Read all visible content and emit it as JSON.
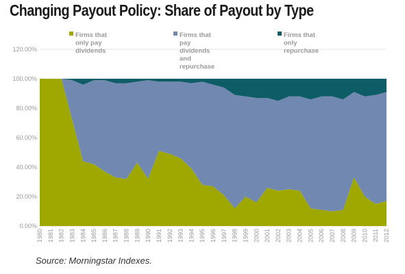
{
  "page": {
    "title": "Changing Payout Policy: Share of Payout by Type",
    "source": "Source: Morningstar Indexes."
  },
  "chart_data": {
    "type": "area",
    "stacked": true,
    "x": [
      "1980",
      "1981",
      "1982",
      "1983",
      "1984",
      "1985",
      "1986",
      "1987",
      "1988",
      "1989",
      "1990",
      "1991",
      "1992",
      "1993",
      "1994",
      "1995",
      "1996",
      "1997",
      "1998",
      "1999",
      "2000",
      "2001",
      "2002",
      "2003",
      "2004",
      "2005",
      "2006",
      "2007",
      "2008",
      "2009",
      "2010",
      "2011",
      "2012"
    ],
    "series": [
      {
        "name": "Firms that only pay dividends",
        "color": "#9fa800",
        "values": [
          100,
          100,
          100,
          72,
          44,
          42,
          37,
          33,
          32,
          43,
          32,
          51,
          49,
          46,
          39,
          28,
          27,
          21,
          12,
          20,
          16,
          26,
          24,
          25,
          24,
          12,
          11,
          10,
          11,
          33,
          20,
          15,
          17
        ]
      },
      {
        "name": "Firms that pay dividends and repurchase",
        "color": "#7189b0",
        "values": [
          0,
          0,
          0,
          27,
          52,
          57,
          62,
          64,
          65,
          55,
          67,
          47,
          49,
          52,
          58,
          70,
          69,
          73,
          77,
          68,
          71,
          61,
          61,
          63,
          64,
          74,
          77,
          78,
          75,
          58,
          68,
          74,
          74
        ]
      },
      {
        "name": "Firms that only repurchase",
        "color": "#0e5c66",
        "values": [
          0,
          0,
          0,
          1,
          4,
          1,
          1,
          3,
          3,
          2,
          1,
          2,
          2,
          2,
          3,
          2,
          4,
          6,
          11,
          12,
          13,
          13,
          15,
          12,
          12,
          14,
          12,
          12,
          14,
          9,
          12,
          11,
          9
        ]
      }
    ],
    "y_ticks": [
      "0.00%",
      "20.00%",
      "40.00%",
      "60.00%",
      "80.00%",
      "100.00%",
      "120.00%"
    ],
    "ylim": [
      0,
      120
    ],
    "grid": "horizontal",
    "legend_position": "top"
  }
}
